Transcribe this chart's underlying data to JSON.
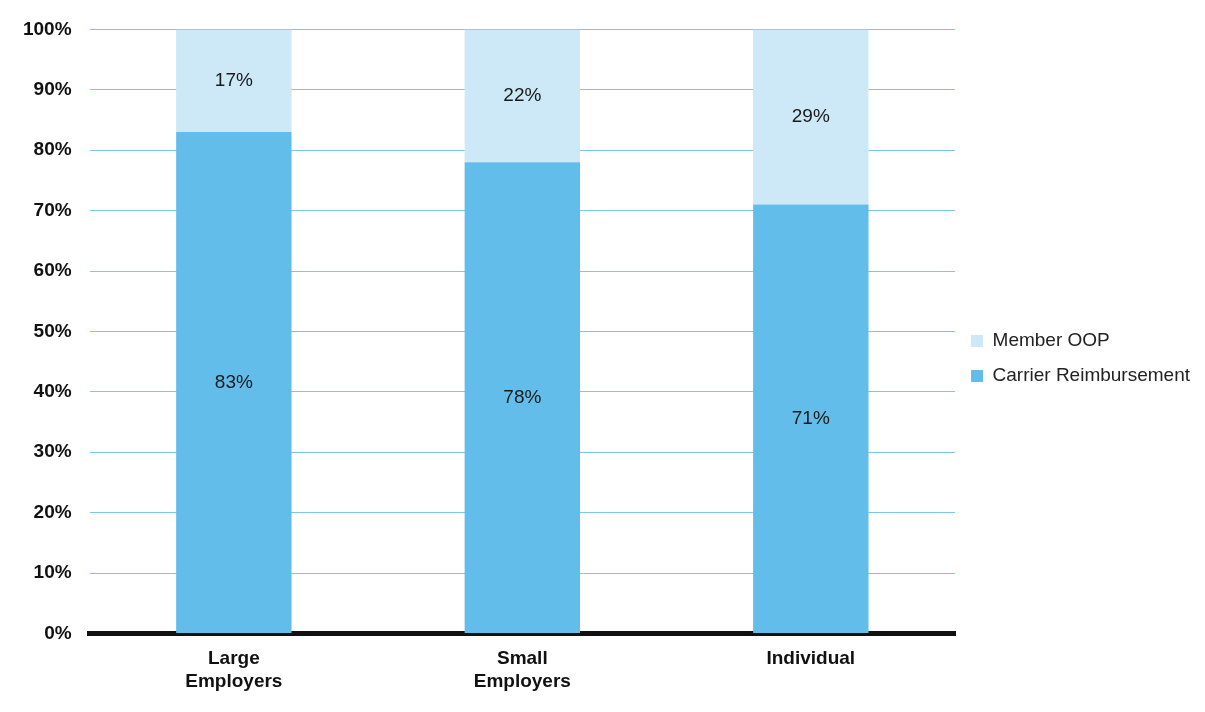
{
  "chart_data": {
    "type": "bar",
    "stacked": true,
    "categories": [
      "Large Employers",
      "Small Employers",
      "Individual"
    ],
    "series": [
      {
        "name": "Carrier Reimbursement",
        "color": "#62bdea",
        "values": [
          83,
          78,
          71
        ],
        "value_labels": [
          "83%",
          "78%",
          "71%"
        ]
      },
      {
        "name": "Member OOP",
        "color": "#cde8f6",
        "values": [
          17,
          22,
          29
        ],
        "value_labels": [
          "17%",
          "22%",
          "29%"
        ]
      }
    ],
    "ylim": [
      0,
      100
    ],
    "yticks": [
      {
        "value": 0,
        "label": "0%"
      },
      {
        "value": 10,
        "label": "10%"
      },
      {
        "value": 20,
        "label": "20%"
      },
      {
        "value": 30,
        "label": "30%"
      },
      {
        "value": 40,
        "label": "40%"
      },
      {
        "value": 50,
        "label": "50%"
      },
      {
        "value": 60,
        "label": "60%"
      },
      {
        "value": 70,
        "label": "70%"
      },
      {
        "value": 80,
        "label": "80%"
      },
      {
        "value": 90,
        "label": "90%"
      },
      {
        "value": 100,
        "label": "100%"
      }
    ],
    "grid": "y",
    "legend": "right"
  }
}
